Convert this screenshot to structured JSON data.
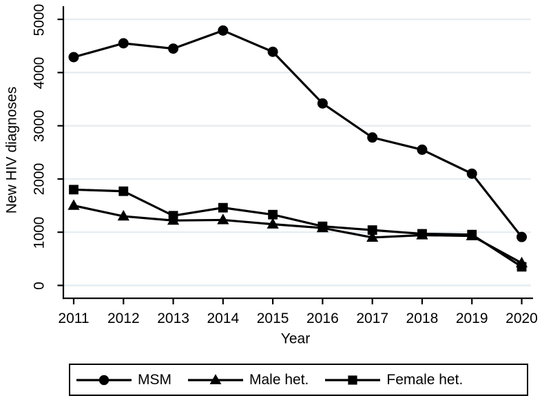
{
  "figure": {
    "background": "#ffffff",
    "line_color": "#000000",
    "gridline_color": "#e6edf2"
  },
  "chart_data": {
    "type": "line",
    "title": "",
    "xlabel": "Year",
    "ylabel": "New HIV diagnoses",
    "categories": [
      "2011",
      "2012",
      "2013",
      "2014",
      "2015",
      "2016",
      "2017",
      "2018",
      "2019",
      "2020"
    ],
    "ylim": [
      0,
      5000
    ],
    "ytick_labels": [
      "0",
      "1000",
      "2000",
      "3000",
      "4000",
      "5000"
    ],
    "grid": "horizontal-light-gridlines",
    "legend_position": "bottom-boxed",
    "series": [
      {
        "name": "MSM",
        "marker": "circle",
        "color": "#000000",
        "values": [
          4290,
          4550,
          4450,
          4790,
          4390,
          3420,
          2780,
          2550,
          2100,
          910
        ]
      },
      {
        "name": "Male het.",
        "marker": "triangle",
        "color": "#000000",
        "values": [
          1500,
          1300,
          1220,
          1230,
          1150,
          1080,
          900,
          945,
          930,
          420
        ]
      },
      {
        "name": "Female het.",
        "marker": "square",
        "color": "#000000",
        "values": [
          1800,
          1770,
          1310,
          1460,
          1330,
          1110,
          1040,
          970,
          955,
          350
        ]
      }
    ]
  }
}
